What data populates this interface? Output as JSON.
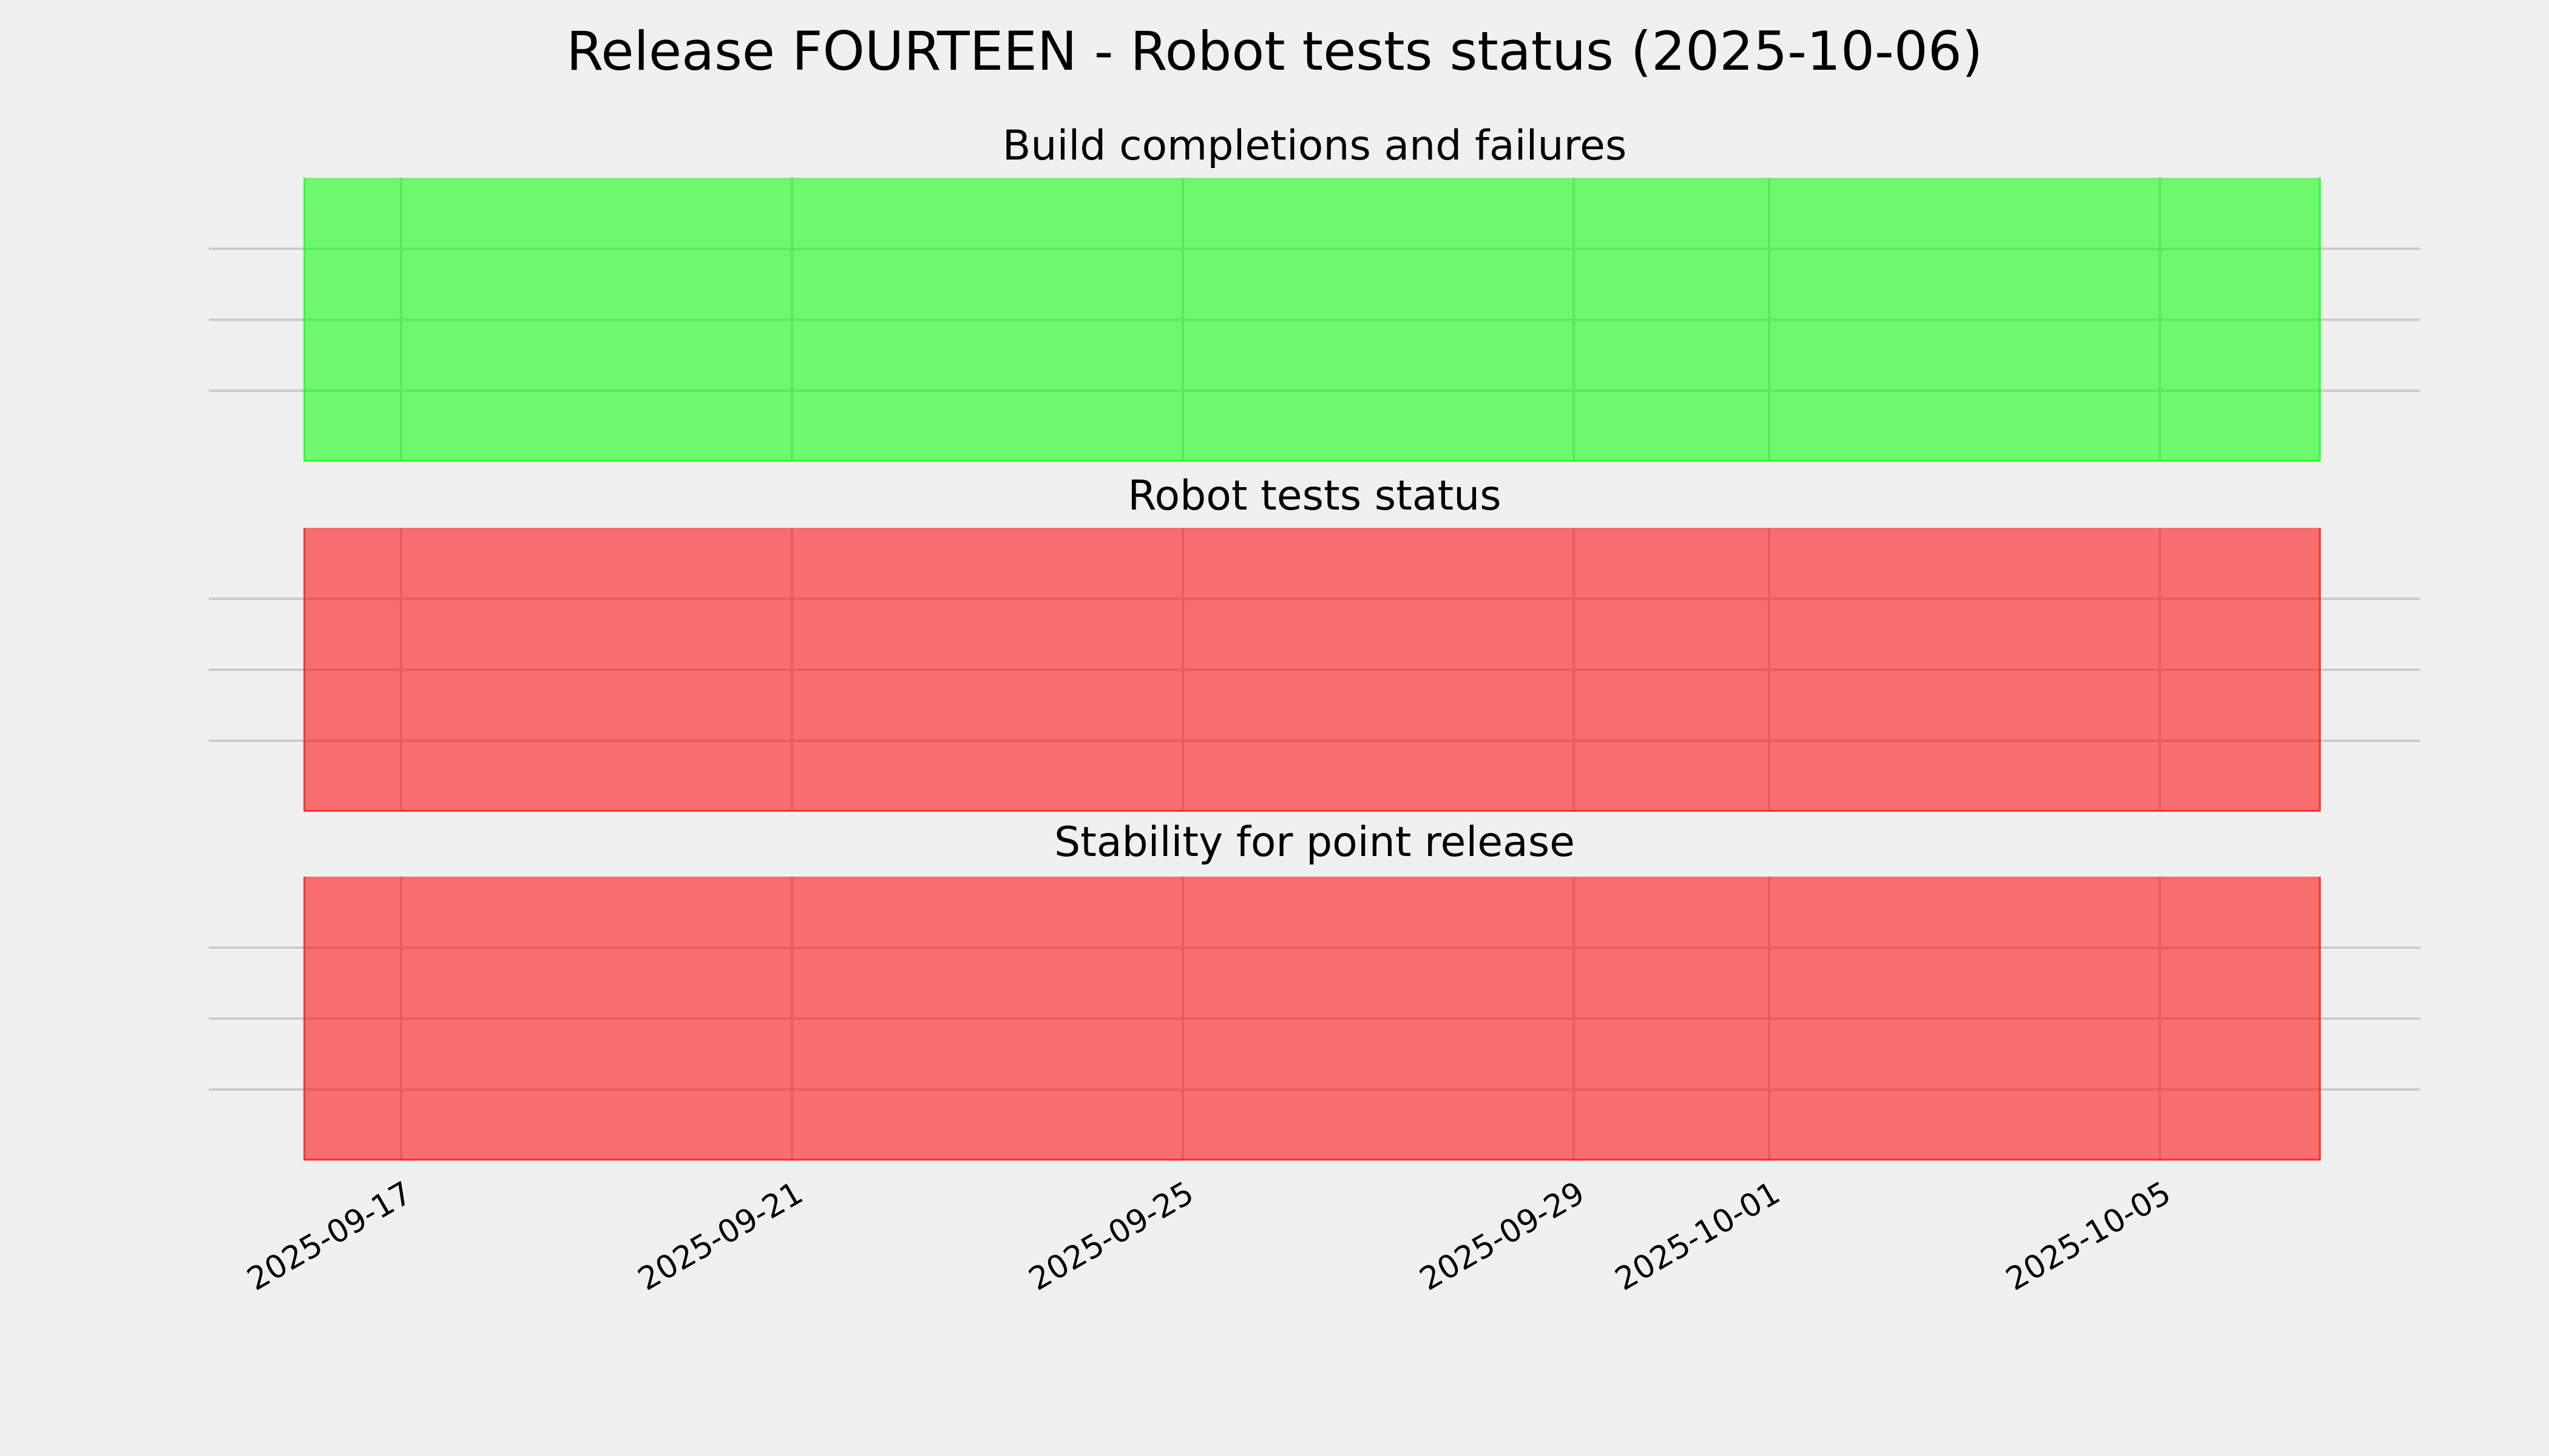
{
  "title": "Release FOURTEEN - Robot tests status (2025-10-06)",
  "chart_data": {
    "type": "area",
    "title": "Release FOURTEEN - Robot tests status (2025-10-06)",
    "x_ticks": [
      "2025-09-17",
      "2025-09-21",
      "2025-09-25",
      "2025-09-29",
      "2025-10-01",
      "2025-10-05"
    ],
    "x_range": [
      "2025-09-16",
      "2025-10-06"
    ],
    "grid": true,
    "legend": false,
    "background_color": "#F0F0F0",
    "grid_color": "#CBCBCB",
    "panels": [
      {
        "title": "Build completions and failures",
        "status": "pass",
        "value": 1,
        "span": [
          "2025-09-16",
          "2025-10-06"
        ],
        "fill_color": "rgba(0,255,0,0.545)",
        "edge_color": "rgba(0,255,0,0.545)",
        "rendered_fill_hex": "#6DF86D",
        "rendered_edge_hex": "#32FC32"
      },
      {
        "title": "Robot tests status",
        "status": "fail",
        "value": 0,
        "span": [
          "2025-09-16",
          "2025-10-06"
        ],
        "fill_color": "rgba(255,0,0,0.545)",
        "edge_color": "rgba(255,0,0,0.545)",
        "rendered_fill_hex": "#F86D6D",
        "rendered_edge_hex": "#FC3232"
      },
      {
        "title": "Stability for point release",
        "status": "fail",
        "value": 0,
        "span": [
          "2025-09-16",
          "2025-10-06"
        ],
        "fill_color": "rgba(255,0,0,0.545)",
        "edge_color": "rgba(255,0,0,0.545)",
        "rendered_fill_hex": "#F86D6D",
        "rendered_edge_hex": "#FC3232"
      }
    ]
  }
}
